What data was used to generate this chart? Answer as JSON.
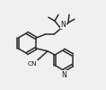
{
  "bg_color": "#f0f0f0",
  "line_color": "#2a2a2a",
  "text_color": "#111111",
  "lw": 1.1,
  "figsize": [
    1.18,
    1.0
  ],
  "dpi": 100,
  "N_label": "N",
  "CN_label": "CN"
}
